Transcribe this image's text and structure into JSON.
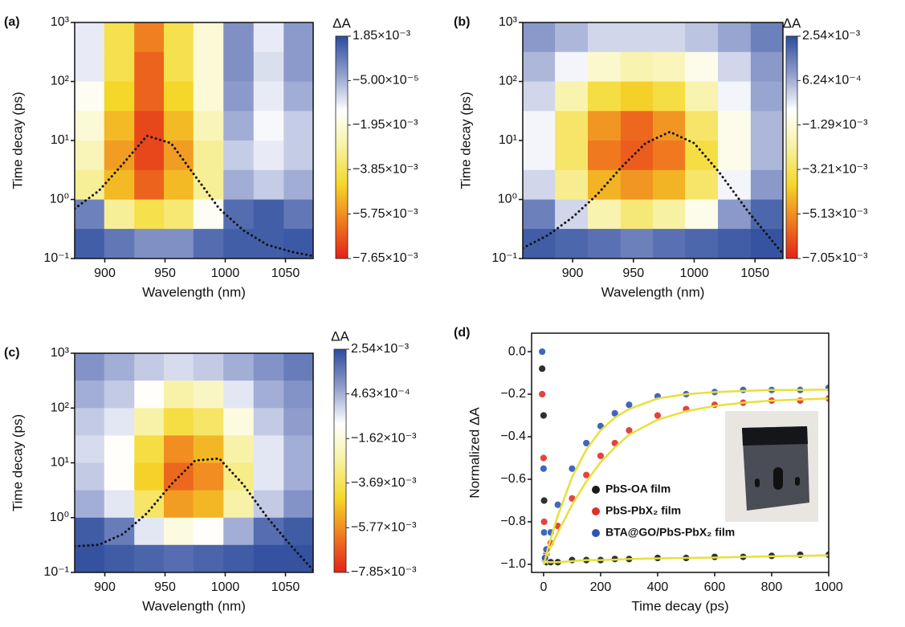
{
  "chart_data": [
    {
      "type": "heatmap",
      "panel_label": "(a)",
      "xlabel": "Wavelength (nm)",
      "ylabel": "Time decay (ps)",
      "colorbar_title": "ΔA",
      "x": [
        887,
        912,
        937,
        961,
        986,
        1011,
        1036,
        1061
      ],
      "y": [
        562,
        178,
        56,
        17.8,
        5.6,
        1.78,
        0.56,
        0.18
      ],
      "z": [
        [
          -0.001,
          -0.004,
          -0.006,
          -0.004,
          -0.002,
          0.0005,
          -0.001,
          0.0003
        ],
        [
          -0.001,
          -0.004,
          -0.0065,
          -0.004,
          -0.002,
          0.0005,
          -0.0008,
          0.0003
        ],
        [
          -0.0015,
          -0.0045,
          -0.0065,
          -0.0045,
          -0.002,
          0.0003,
          -0.001,
          0.0
        ],
        [
          -0.002,
          -0.005,
          -0.007,
          -0.005,
          -0.0025,
          0.0,
          -0.0012,
          -0.0005
        ],
        [
          -0.0025,
          -0.0055,
          -0.007,
          -0.0055,
          -0.003,
          -0.0005,
          -0.001,
          -0.0005
        ],
        [
          -0.003,
          -0.005,
          -0.0065,
          -0.005,
          -0.003,
          0.0,
          -0.0005,
          0.0
        ],
        [
          0.0008,
          -0.003,
          -0.004,
          -0.0035,
          -0.0015,
          0.0012,
          0.0015,
          0.001
        ],
        [
          0.0015,
          0.001,
          0.0005,
          0.0005,
          0.0012,
          0.0015,
          0.0015,
          0.0016
        ]
      ],
      "zlim": [
        -0.00765,
        0.00185
      ],
      "zticks": [
        {
          "value": 0.00185,
          "label": "1.85×10⁻³"
        },
        {
          "value": -5e-05,
          "label": "−5.00×10⁻⁵"
        },
        {
          "value": -0.00195,
          "label": "−1.95×10⁻³"
        },
        {
          "value": -0.00385,
          "label": "−3.85×10⁻³"
        },
        {
          "value": -0.00575,
          "label": "−5.75×10⁻³"
        },
        {
          "value": -0.00765,
          "label": "−7.65×10⁻³"
        }
      ],
      "colormap": [
        "#e32119",
        "#f07c1f",
        "#f4d829",
        "#f7f1a0",
        "#ffffff",
        "#8e9ccc",
        "#2c4c9c"
      ],
      "xlim": [
        875,
        1073
      ],
      "xticks": [
        900,
        950,
        1000,
        1050
      ],
      "ylim": [
        0.1,
        1000
      ],
      "yscale": "log",
      "yticks": [
        {
          "value": 0.1,
          "label": "10⁻¹"
        },
        {
          "value": 1,
          "label": "10⁰"
        },
        {
          "value": 10,
          "label": "10¹"
        },
        {
          "value": 100,
          "label": "10²"
        },
        {
          "value": 1000,
          "label": "10³"
        }
      ],
      "curve": {
        "x": [
          875,
          895,
          915,
          935,
          955,
          975,
          995,
          1015,
          1035,
          1055,
          1073
        ],
        "values": [
          0.7,
          1.4,
          4,
          12,
          9,
          2.5,
          0.7,
          0.3,
          0.17,
          0.13,
          0.11
        ],
        "color": "#111111"
      }
    },
    {
      "type": "heatmap",
      "panel_label": "(b)",
      "xlabel": "Wavelength (nm)",
      "ylabel": "Time decay (ps)",
      "colorbar_title": "ΔA",
      "x": [
        872,
        899,
        926,
        953,
        979,
        1006,
        1033,
        1060
      ],
      "y": [
        562,
        178,
        56,
        17.8,
        5.6,
        1.78,
        0.56,
        0.18
      ],
      "z": [
        [
          0.001,
          0.0005,
          0.0,
          0.0,
          0.0,
          0.0003,
          0.0008,
          0.0015
        ],
        [
          0.0005,
          -0.0005,
          -0.0015,
          -0.002,
          -0.0018,
          -0.001,
          0.0,
          0.001
        ],
        [
          0.0,
          -0.002,
          -0.0035,
          -0.004,
          -0.0035,
          -0.002,
          -0.0005,
          0.0008
        ],
        [
          -0.0005,
          -0.003,
          -0.005,
          -0.0058,
          -0.005,
          -0.003,
          -0.001,
          0.0005
        ],
        [
          -0.0005,
          -0.003,
          -0.0055,
          -0.006,
          -0.0055,
          -0.0035,
          -0.001,
          0.0005
        ],
        [
          0.0,
          -0.0025,
          -0.0045,
          -0.005,
          -0.0045,
          -0.003,
          -0.0005,
          0.001
        ],
        [
          0.0015,
          0.0,
          -0.002,
          -0.0028,
          -0.0022,
          -0.001,
          0.001,
          0.002
        ],
        [
          0.0022,
          0.002,
          0.0018,
          0.0015,
          0.0018,
          0.002,
          0.0022,
          0.0024
        ]
      ],
      "zlim": [
        -0.00705,
        0.00254
      ],
      "zticks": [
        {
          "value": 0.00254,
          "label": "2.54×10⁻³"
        },
        {
          "value": 0.000624,
          "label": "6.24×10⁻⁴"
        },
        {
          "value": -0.00129,
          "label": "−1.29×10⁻³"
        },
        {
          "value": -0.00321,
          "label": "−3.21×10⁻³"
        },
        {
          "value": -0.00513,
          "label": "−5.13×10⁻³"
        },
        {
          "value": -0.00705,
          "label": "−7.05×10⁻³"
        }
      ],
      "colormap": [
        "#e32119",
        "#f07c1f",
        "#f4d829",
        "#f7f1a0",
        "#ffffff",
        "#8e9ccc",
        "#2c4c9c"
      ],
      "xlim": [
        859,
        1073
      ],
      "xticks": [
        900,
        950,
        1000,
        1050
      ],
      "ylim": [
        0.1,
        1000
      ],
      "yscale": "log",
      "yticks": [
        {
          "value": 0.1,
          "label": "10⁻¹"
        },
        {
          "value": 1,
          "label": "10⁰"
        },
        {
          "value": 10,
          "label": "10¹"
        },
        {
          "value": 100,
          "label": "10²"
        },
        {
          "value": 1000,
          "label": "10³"
        }
      ],
      "curve": {
        "x": [
          859,
          880,
          900,
          920,
          940,
          960,
          980,
          1000,
          1020,
          1045,
          1073
        ],
        "values": [
          0.15,
          0.25,
          0.5,
          1.2,
          3.5,
          9,
          14,
          9,
          3,
          0.6,
          0.12
        ],
        "color": "#111111"
      }
    },
    {
      "type": "heatmap",
      "panel_label": "(c)",
      "xlabel": "Wavelength (nm)",
      "ylabel": "Time decay (ps)",
      "colorbar_title": "ΔA",
      "x": [
        887,
        912,
        937,
        961,
        986,
        1011,
        1036,
        1061
      ],
      "y": [
        562,
        178,
        56,
        17.8,
        5.6,
        1.78,
        0.56,
        0.18
      ],
      "z": [
        [
          0.001,
          0.0005,
          0.0,
          -0.0003,
          0.0,
          0.0005,
          0.001,
          0.0015
        ],
        [
          0.0005,
          0.0,
          -0.001,
          -0.0025,
          -0.002,
          -0.0005,
          0.0005,
          0.001
        ],
        [
          0.0,
          -0.0005,
          -0.0025,
          -0.004,
          -0.0035,
          -0.0015,
          0.0,
          0.0008
        ],
        [
          -0.0003,
          -0.001,
          -0.004,
          -0.0058,
          -0.005,
          -0.0025,
          -0.0005,
          0.0005
        ],
        [
          0.0,
          -0.001,
          -0.0045,
          -0.0065,
          -0.0058,
          -0.003,
          -0.0005,
          0.0005
        ],
        [
          0.0005,
          -0.0005,
          -0.0035,
          -0.0055,
          -0.005,
          -0.0025,
          0.0,
          0.001
        ],
        [
          0.0022,
          0.0015,
          -0.0005,
          -0.0015,
          -0.001,
          0.0005,
          0.0018,
          0.0022
        ],
        [
          0.0024,
          0.0022,
          0.002,
          0.0018,
          0.002,
          0.0022,
          0.0024,
          0.0024
        ]
      ],
      "zlim": [
        -0.00785,
        0.00254
      ],
      "zticks": [
        {
          "value": 0.00254,
          "label": "2.54×10⁻³"
        },
        {
          "value": 0.000463,
          "label": "4.63×10⁻⁴"
        },
        {
          "value": -0.00162,
          "label": "−1.62×10⁻³"
        },
        {
          "value": -0.00369,
          "label": "−3.69×10⁻³"
        },
        {
          "value": -0.00577,
          "label": "−5.77×10⁻³"
        },
        {
          "value": -0.00785,
          "label": "−7.85×10⁻³"
        }
      ],
      "colormap": [
        "#e32119",
        "#f07c1f",
        "#f4d829",
        "#f7f1a0",
        "#ffffff",
        "#8e9ccc",
        "#2c4c9c"
      ],
      "xlim": [
        875,
        1073
      ],
      "xticks": [
        900,
        950,
        1000,
        1050
      ],
      "ylim": [
        0.1,
        1000
      ],
      "yscale": "log",
      "yticks": [
        {
          "value": 0.1,
          "label": "10⁻¹"
        },
        {
          "value": 1,
          "label": "10⁰"
        },
        {
          "value": 10,
          "label": "10¹"
        },
        {
          "value": 100,
          "label": "10²"
        },
        {
          "value": 1000,
          "label": "10³"
        }
      ],
      "curve": {
        "x": [
          875,
          895,
          915,
          935,
          955,
          975,
          995,
          1015,
          1035,
          1055,
          1073
        ],
        "values": [
          0.3,
          0.32,
          0.5,
          1.2,
          4,
          11,
          12,
          4,
          1,
          0.3,
          0.11
        ],
        "color": "#111111"
      }
    },
    {
      "type": "scatter",
      "panel_label": "(d)",
      "xlabel": "Time decay (ps)",
      "ylabel": "Normalized ΔA",
      "x": [
        -5,
        0,
        2,
        5,
        10,
        25,
        50,
        100,
        150,
        200,
        250,
        300,
        400,
        500,
        600,
        700,
        800,
        900,
        1000
      ],
      "series": [
        {
          "name": "PbS-OA film",
          "color": "#1a1a1a",
          "values": [
            -0.08,
            -0.3,
            -0.7,
            -0.98,
            -0.99,
            -0.99,
            -0.99,
            -0.98,
            -0.98,
            -0.98,
            -0.975,
            -0.975,
            -0.97,
            -0.97,
            -0.965,
            -0.965,
            -0.96,
            -0.955,
            -0.955
          ],
          "fit": [
            null,
            -1.0,
            -0.995,
            -0.99,
            -0.99,
            -0.99,
            -0.99,
            -0.985,
            -0.98,
            -0.98,
            -0.978,
            -0.975,
            -0.972,
            -0.97,
            -0.968,
            -0.965,
            -0.962,
            -0.96,
            -0.958
          ]
        },
        {
          "name": "PbS-PbX₂ film",
          "color": "#e0302a",
          "values": [
            -0.2,
            -0.5,
            -0.8,
            -0.97,
            -0.95,
            -0.9,
            -0.82,
            -0.69,
            -0.58,
            -0.49,
            -0.43,
            -0.37,
            -0.3,
            -0.27,
            -0.25,
            -0.24,
            -0.23,
            -0.23,
            -0.22
          ],
          "fit": [
            null,
            -1.0,
            -0.99,
            -0.985,
            -0.97,
            -0.92,
            -0.85,
            -0.72,
            -0.61,
            -0.52,
            -0.45,
            -0.39,
            -0.32,
            -0.28,
            -0.255,
            -0.24,
            -0.23,
            -0.225,
            -0.22
          ]
        },
        {
          "name": "BTA@GO/PbS-PbX₂ film",
          "color": "#2f55b5",
          "values": [
            0.0,
            -0.55,
            -0.85,
            -0.97,
            -0.93,
            -0.85,
            -0.72,
            -0.55,
            -0.43,
            -0.35,
            -0.29,
            -0.25,
            -0.21,
            -0.2,
            -0.19,
            -0.18,
            -0.18,
            -0.18,
            -0.17
          ],
          "fit": [
            null,
            -1.0,
            -0.99,
            -0.98,
            -0.95,
            -0.88,
            -0.77,
            -0.59,
            -0.46,
            -0.37,
            -0.31,
            -0.27,
            -0.22,
            -0.2,
            -0.19,
            -0.185,
            -0.18,
            -0.18,
            -0.178
          ]
        }
      ],
      "fit_color": "#e8df3c",
      "xlim": [
        -42,
        1000
      ],
      "xticks": [
        0,
        200,
        400,
        600,
        800,
        1000
      ],
      "ylim": [
        -1.038,
        0.087
      ],
      "yticks": [
        {
          "value": 0,
          "label": "0.0"
        },
        {
          "value": -0.2,
          "label": "−0.2"
        },
        {
          "value": -0.4,
          "label": "−0.4"
        },
        {
          "value": -0.6,
          "label": "−0.6"
        },
        {
          "value": -0.8,
          "label": "−0.8"
        },
        {
          "value": -1,
          "label": "−1.0"
        }
      ],
      "legend": "lower left"
    }
  ]
}
